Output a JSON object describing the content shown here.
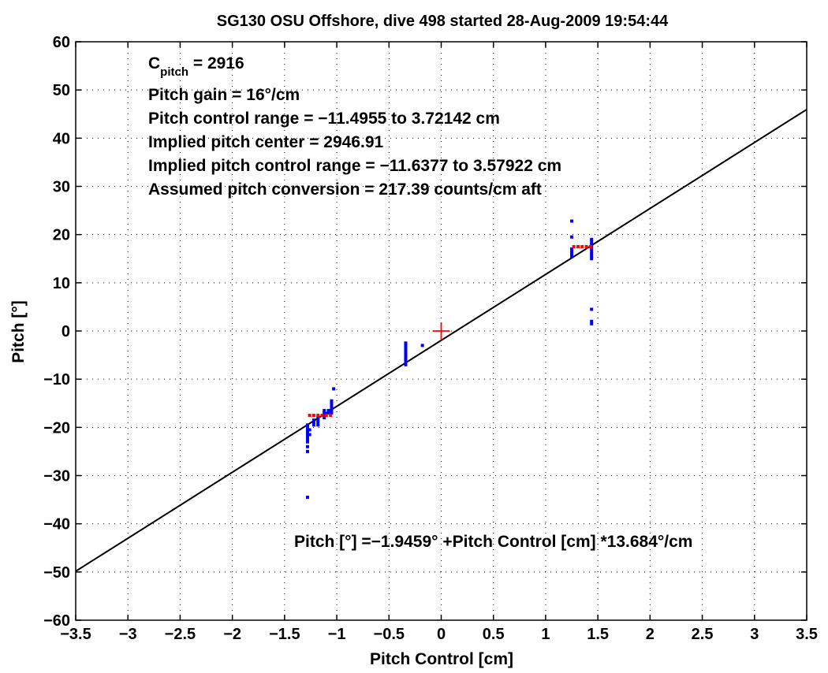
{
  "chart_data": {
    "type": "scatter",
    "title": "SG130 OSU Offshore, dive 498 started 28-Aug-2009 19:54:44",
    "xlabel": "Pitch Control [cm]",
    "ylabel": "Pitch [°]",
    "xlim": [
      -3.5,
      3.5
    ],
    "ylim": [
      -60,
      60
    ],
    "xticks": [
      -3.5,
      -3,
      -2.5,
      -2,
      -1.5,
      -1,
      -0.5,
      0,
      0.5,
      1,
      1.5,
      2,
      2.5,
      3,
      3.5
    ],
    "yticks": [
      -60,
      -50,
      -40,
      -30,
      -20,
      -10,
      0,
      10,
      20,
      30,
      40,
      50,
      60
    ],
    "grid": true,
    "annotations": {
      "cpitch_symbol": "C",
      "cpitch_subscript": "pitch",
      "cpitch_value": " = 2916",
      "pitch_gain": "Pitch gain = 16°/cm",
      "pitch_control_range": "Pitch control range = −11.4955 to 3.72142 cm",
      "implied_pitch_center": "Implied pitch center = 2946.91",
      "implied_pitch_control_range": "Implied pitch control range = −11.6377 to 3.57922 cm",
      "assumed_pitch_conversion": "Assumed pitch conversion = 217.39 counts/cm aft",
      "fit_equation": "Pitch [°] =−1.9459° +Pitch Control [cm] *13.684°/cm"
    },
    "fit_line": {
      "intercept": -1.9459,
      "slope": 13.684,
      "color": "#000000"
    },
    "center_marker": {
      "x": 0,
      "y": 0,
      "color": "#ff0000"
    },
    "series": [
      {
        "color": "#0000ff",
        "marker": "point",
        "points": [
          [
            -1.28,
            -19.5
          ],
          [
            -1.28,
            -20
          ],
          [
            -1.28,
            -20.5
          ],
          [
            -1.28,
            -21
          ],
          [
            -1.28,
            -21.5
          ],
          [
            -1.28,
            -22
          ],
          [
            -1.28,
            -22.5
          ],
          [
            -1.28,
            -23
          ],
          [
            -1.28,
            -24
          ],
          [
            -1.28,
            -25
          ],
          [
            -1.28,
            -34.5
          ],
          [
            -1.26,
            -20.5
          ],
          [
            -1.26,
            -21.5
          ],
          [
            -1.22,
            -18.5
          ],
          [
            -1.22,
            -19
          ],
          [
            -1.22,
            -19.5
          ],
          [
            -1.18,
            -18
          ],
          [
            -1.18,
            -18.5
          ],
          [
            -1.18,
            -19
          ],
          [
            -1.18,
            -19.5
          ],
          [
            -1.12,
            -16.5
          ],
          [
            -1.12,
            -17
          ],
          [
            -1.12,
            -17.5
          ],
          [
            -1.12,
            -18
          ],
          [
            -1.08,
            -16.5
          ],
          [
            -1.08,
            -17
          ],
          [
            -1.05,
            -14.5
          ],
          [
            -1.05,
            -15
          ],
          [
            -1.05,
            -15.5
          ],
          [
            -1.05,
            -16
          ],
          [
            -1.05,
            -16.5
          ],
          [
            -1.05,
            -17
          ],
          [
            -1.03,
            -12
          ],
          [
            -0.34,
            -2.5
          ],
          [
            -0.34,
            -3
          ],
          [
            -0.34,
            -3.5
          ],
          [
            -0.34,
            -4
          ],
          [
            -0.34,
            -4.5
          ],
          [
            -0.34,
            -5
          ],
          [
            -0.34,
            -5.5
          ],
          [
            -0.34,
            -6
          ],
          [
            -0.34,
            -6.5
          ],
          [
            -0.34,
            -7
          ],
          [
            -0.18,
            -3
          ],
          [
            1.25,
            22.8
          ],
          [
            1.25,
            19.5
          ],
          [
            1.25,
            17
          ],
          [
            1.25,
            16.5
          ],
          [
            1.25,
            16
          ],
          [
            1.25,
            15.5
          ],
          [
            1.44,
            19
          ],
          [
            1.44,
            18.5
          ],
          [
            1.44,
            18
          ],
          [
            1.44,
            17.5
          ],
          [
            1.44,
            17
          ],
          [
            1.44,
            16.5
          ],
          [
            1.44,
            16
          ],
          [
            1.44,
            15.5
          ],
          [
            1.44,
            15
          ],
          [
            1.44,
            4.5
          ],
          [
            1.44,
            2
          ],
          [
            1.44,
            1.5
          ]
        ]
      },
      {
        "color": "#ff0000",
        "marker": "point",
        "points": [
          [
            -1.26,
            -17.5
          ],
          [
            -1.22,
            -17.5
          ],
          [
            -1.18,
            -17.5
          ],
          [
            -1.14,
            -17.5
          ],
          [
            -1.1,
            -17.5
          ],
          [
            -1.06,
            -17.5
          ],
          [
            1.27,
            17.5
          ],
          [
            1.31,
            17.5
          ],
          [
            1.35,
            17.5
          ],
          [
            1.39,
            17.5
          ],
          [
            1.43,
            17.5
          ]
        ]
      }
    ]
  }
}
